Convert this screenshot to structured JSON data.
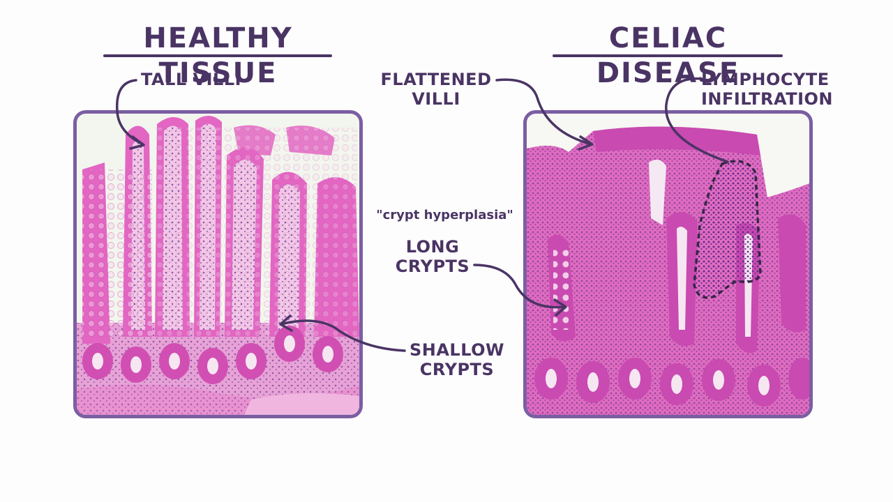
{
  "healthy": {
    "title": "HEALTHY TISSUE",
    "tall_villi_label": "TALL VILLI",
    "shallow_crypts_label": "SHALLOW\nCRYPTS"
  },
  "celiac": {
    "title": "CELIAC DISEASE",
    "flattened_villi_label": "FLATTENED\nVILLI",
    "lymphocyte_label": "LYMPHOCYTE\nINFILTRATION",
    "crypt_hyperplasia_note": "\"crypt hyperplasia\"",
    "long_crypts_label": "LONG\nCRYPTS"
  },
  "colors": {
    "ink": "#4a3464",
    "frame": "#7b5ea2",
    "tissue_pink": "#e266c2",
    "tissue_deep": "#b8369a",
    "nuclei": "#5a2a8a",
    "lumen": "#f1f5ef"
  }
}
